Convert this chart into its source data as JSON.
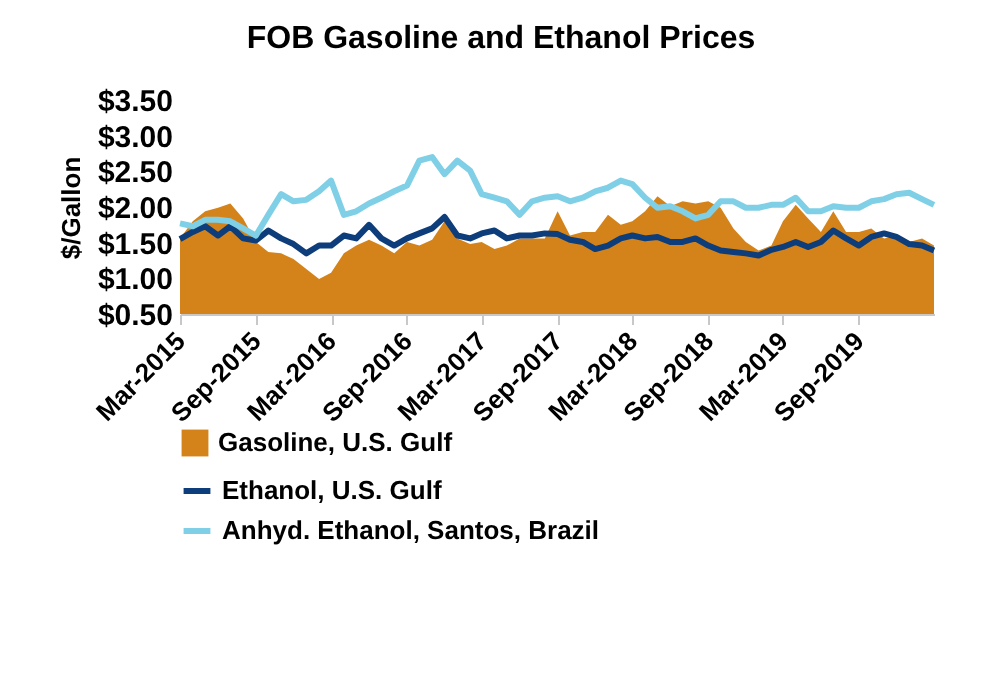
{
  "chart_data": {
    "type": "line",
    "title": "FOB Gasoline and Ethanol Prices",
    "ylabel": "$/Gallon",
    "x": [
      "2015-03",
      "2015-04",
      "2015-05",
      "2015-06",
      "2015-07",
      "2015-08",
      "2015-09",
      "2015-10",
      "2015-11",
      "2015-12",
      "2016-01",
      "2016-02",
      "2016-03",
      "2016-04",
      "2016-05",
      "2016-06",
      "2016-07",
      "2016-08",
      "2016-09",
      "2016-10",
      "2016-11",
      "2016-12",
      "2017-01",
      "2017-02",
      "2017-03",
      "2017-04",
      "2017-05",
      "2017-06",
      "2017-07",
      "2017-08",
      "2017-09",
      "2017-10",
      "2017-11",
      "2017-12",
      "2018-01",
      "2018-02",
      "2018-03",
      "2018-04",
      "2018-05",
      "2018-06",
      "2018-07",
      "2018-08",
      "2018-09",
      "2018-10",
      "2018-11",
      "2018-12",
      "2019-01",
      "2019-02",
      "2019-03",
      "2019-04",
      "2019-05",
      "2019-06",
      "2019-07",
      "2019-08",
      "2019-09",
      "2019-10",
      "2019-11",
      "2019-12",
      "2020-01",
      "2020-02",
      "2020-03"
    ],
    "series": [
      {
        "name": "Gasoline, U.S. Gulf",
        "type": "area",
        "color": "#d4831a",
        "values": [
          1.56,
          1.8,
          1.94,
          1.99,
          2.05,
          1.84,
          1.51,
          1.37,
          1.35,
          1.27,
          1.13,
          0.99,
          1.08,
          1.35,
          1.46,
          1.54,
          1.46,
          1.35,
          1.51,
          1.46,
          1.54,
          1.8,
          1.56,
          1.48,
          1.51,
          1.41,
          1.46,
          1.56,
          1.56,
          1.56,
          1.94,
          1.6,
          1.65,
          1.65,
          1.89,
          1.75,
          1.8,
          1.94,
          2.15,
          2.01,
          2.08,
          2.05,
          2.08,
          1.99,
          1.7,
          1.51,
          1.39,
          1.46,
          1.8,
          2.03,
          1.84,
          1.65,
          1.94,
          1.65,
          1.65,
          1.7,
          1.56,
          1.6,
          1.51,
          1.56,
          1.46
        ]
      },
      {
        "name": "Ethanol, U.S. Gulf",
        "color": "#0d3d7a",
        "values": [
          1.55,
          1.65,
          1.73,
          1.6,
          1.73,
          1.56,
          1.53,
          1.67,
          1.56,
          1.48,
          1.35,
          1.46,
          1.46,
          1.6,
          1.56,
          1.75,
          1.56,
          1.46,
          1.56,
          1.63,
          1.7,
          1.86,
          1.6,
          1.56,
          1.63,
          1.67,
          1.56,
          1.6,
          1.6,
          1.63,
          1.62,
          1.54,
          1.51,
          1.41,
          1.46,
          1.56,
          1.6,
          1.56,
          1.58,
          1.51,
          1.51,
          1.56,
          1.46,
          1.39,
          1.37,
          1.35,
          1.32,
          1.4,
          1.44,
          1.51,
          1.44,
          1.51,
          1.67,
          1.56,
          1.46,
          1.58,
          1.63,
          1.58,
          1.48,
          1.46,
          1.39
        ]
      },
      {
        "name": "Anhyd. Ethanol, Santos, Brazil",
        "color": "#7fd0e6",
        "values": [
          1.77,
          1.73,
          1.82,
          1.82,
          1.8,
          1.7,
          1.6,
          1.89,
          2.18,
          2.08,
          2.1,
          2.22,
          2.37,
          1.89,
          1.94,
          2.05,
          2.13,
          2.22,
          2.3,
          2.65,
          2.7,
          2.46,
          2.65,
          2.51,
          2.18,
          2.13,
          2.08,
          1.89,
          2.08,
          2.13,
          2.15,
          2.08,
          2.13,
          2.22,
          2.27,
          2.37,
          2.32,
          2.13,
          1.99,
          2.01,
          1.94,
          1.84,
          1.89,
          2.08,
          2.08,
          1.99,
          1.99,
          2.03,
          2.03,
          2.13,
          1.94,
          1.94,
          2.01,
          1.99,
          1.99,
          2.08,
          2.11,
          2.18,
          2.2,
          2.11,
          2.03
        ]
      }
    ],
    "xlim": [
      "2015-03",
      "2020-03"
    ],
    "xticks": [
      {
        "value": "2015-03",
        "label": "Mar-2015"
      },
      {
        "value": "2015-09",
        "label": "Sep-2015"
      },
      {
        "value": "2016-03",
        "label": "Mar-2016"
      },
      {
        "value": "2016-09",
        "label": "Sep-2016"
      },
      {
        "value": "2017-03",
        "label": "Mar-2017"
      },
      {
        "value": "2017-09",
        "label": "Sep-2017"
      },
      {
        "value": "2018-03",
        "label": "Mar-2018"
      },
      {
        "value": "2018-09",
        "label": "Sep-2018"
      },
      {
        "value": "2019-03",
        "label": "Mar-2019"
      },
      {
        "value": "2019-09",
        "label": "Sep-2019"
      }
    ],
    "ylim": [
      0.5,
      3.5
    ],
    "yticks": [
      {
        "value": 0.5,
        "label": "$0.50"
      },
      {
        "value": 1,
        "label": "$1.00"
      },
      {
        "value": 1.5,
        "label": "$1.50"
      },
      {
        "value": 2,
        "label": "$2.00"
      },
      {
        "value": 2.5,
        "label": "$2.50"
      },
      {
        "value": 3,
        "label": "$3.00"
      },
      {
        "value": 3.5,
        "label": "$3.50"
      }
    ],
    "grid": false,
    "legend": "bottom",
    "line_style": "solid",
    "marker": "none"
  }
}
